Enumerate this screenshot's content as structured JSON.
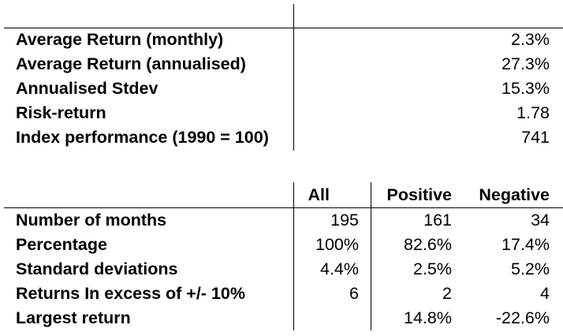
{
  "summary": {
    "rows": [
      {
        "label": "Average Return (monthly)",
        "value": "2.3%"
      },
      {
        "label": "Average Return (annualised)",
        "value": "27.3%"
      },
      {
        "label": "Annualised Stdev",
        "value": "15.3%"
      },
      {
        "label": "Risk-return",
        "value": "1.78"
      },
      {
        "label": "Index performance (1990 = 100)",
        "value": "741"
      }
    ]
  },
  "breakdown": {
    "headers": [
      "All",
      "Positive",
      "Negative"
    ],
    "rows": [
      {
        "label": "Number of months",
        "all": "195",
        "positive": "161",
        "negative": "34"
      },
      {
        "label": "Percentage",
        "all": "100%",
        "positive": "82.6%",
        "negative": "17.4%"
      },
      {
        "label": "Standard deviations",
        "all": "4.4%",
        "positive": "2.5%",
        "negative": "5.2%"
      },
      {
        "label": "Returns In excess of +/- 10%",
        "all": "6",
        "positive": "2",
        "negative": "4"
      },
      {
        "label": "Largest return",
        "all": "",
        "positive": "14.8%",
        "negative": "-22.6%"
      }
    ]
  }
}
